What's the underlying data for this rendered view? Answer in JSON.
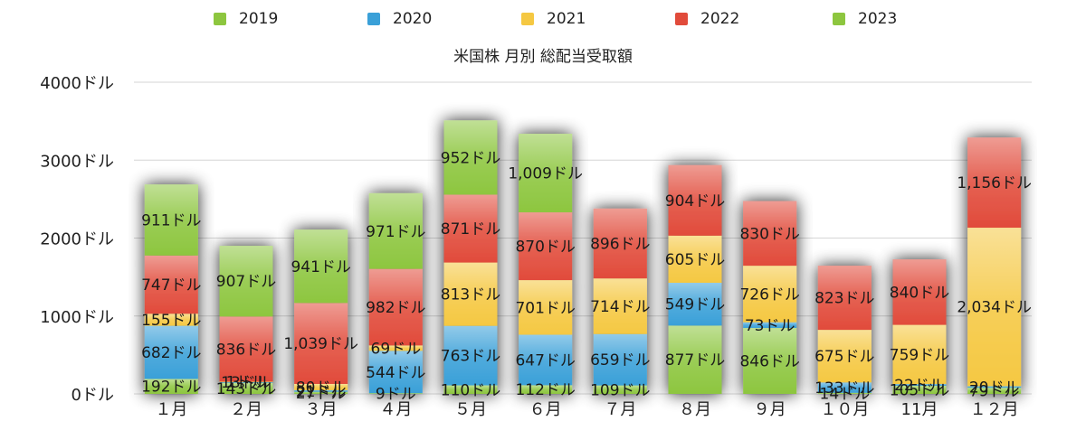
{
  "chart_data": {
    "type": "bar",
    "stacked": true,
    "title": "米国株 月別 総配当受取額",
    "categories": [
      "１月",
      "２月",
      "３月",
      "４月",
      "５月",
      "６月",
      "７月",
      "８月",
      "９月",
      "１０月",
      "11月",
      "１２月"
    ],
    "y_ticks": [
      "0ドル",
      "1000ドル",
      "2000ドル",
      "3000ドル",
      "4000ドル"
    ],
    "ylim": [
      0,
      4000
    ],
    "legend_position": "top",
    "grid": true,
    "series": [
      {
        "name": "2019",
        "color": "#8dc63f",
        "values": [
          192,
          143,
          27,
          9,
          110,
          112,
          109,
          877,
          846,
          14,
          105,
          79
        ],
        "labels": [
          "192ドル",
          "143ドル",
          "27ドル",
          "9ドル",
          "110ドル",
          "112ドル",
          "109ドル",
          "877ドル",
          "846ドル",
          "14ドル",
          "105ドル",
          "79ドル"
        ]
      },
      {
        "name": "2020",
        "color": "#3aa0d8",
        "values": [
          682,
          13,
          21,
          544,
          763,
          647,
          659,
          549,
          73,
          133,
          22,
          20
        ],
        "labels": [
          "682ドル",
          "13ドル",
          "21ドル",
          "544ドル",
          "763ドル",
          "647ドル",
          "659ドル",
          "549ドル",
          "73ドル",
          "133ドル",
          "22ドル",
          "20ドル"
        ]
      },
      {
        "name": "2021",
        "color": "#f5c842",
        "values": [
          155,
          1,
          80,
          69,
          813,
          701,
          714,
          605,
          726,
          675,
          759,
          2034
        ],
        "labels": [
          "155ドル",
          "1ドル",
          "80ドル",
          "69ドル",
          "813ドル",
          "701ドル",
          "714ドル",
          "605ドル",
          "726ドル",
          "675ドル",
          "759ドル",
          "2,034ドル"
        ]
      },
      {
        "name": "2022",
        "color": "#e14b3b",
        "values": [
          747,
          836,
          1039,
          982,
          871,
          870,
          896,
          904,
          830,
          823,
          840,
          1156
        ],
        "labels": [
          "747ドル",
          "836ドル",
          "1,039ドル",
          "982ドル",
          "871ドル",
          "870ドル",
          "896ドル",
          "904ドル",
          "830ドル",
          "823ドル",
          "840ドル",
          "1,156ドル"
        ]
      },
      {
        "name": "2023",
        "color": "#8dc63f",
        "values": [
          911,
          907,
          941,
          971,
          952,
          1009,
          0,
          0,
          0,
          0,
          0,
          0
        ],
        "labels": [
          "911ドル",
          "907ドル",
          "941ドル",
          "971ドル",
          "952ドル",
          "1,009ドル",
          "",
          "",
          "",
          "",
          "",
          ""
        ]
      }
    ]
  }
}
